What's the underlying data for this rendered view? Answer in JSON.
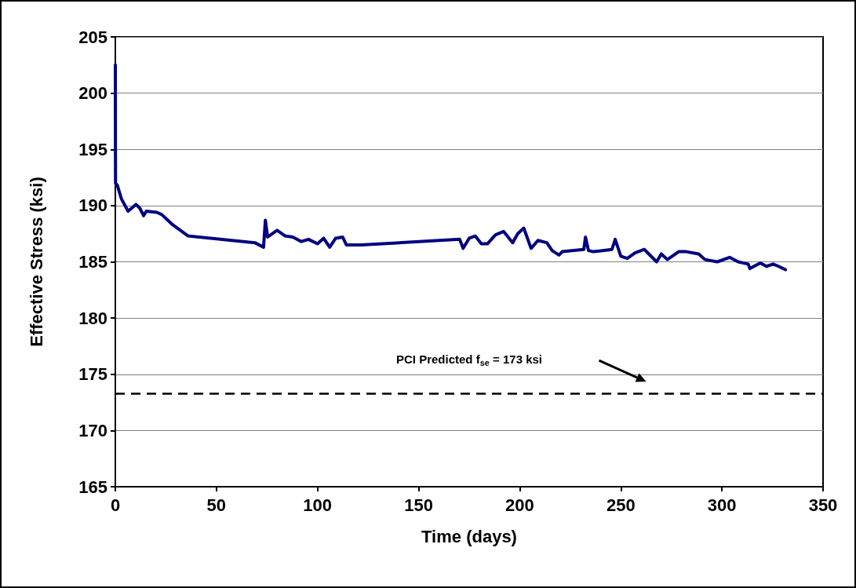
{
  "chart_data": {
    "type": "line",
    "xlabel": "Time (days)",
    "ylabel": "Effective Stress (ksi)",
    "xlim": [
      0,
      350
    ],
    "xticks": [
      0,
      50,
      100,
      150,
      200,
      250,
      300,
      350
    ],
    "ylim": [
      165,
      205
    ],
    "yticks": [
      165,
      170,
      175,
      180,
      185,
      190,
      195,
      200,
      205
    ],
    "grid": "y",
    "marker": "none",
    "line_style": "solid",
    "series": [
      {
        "color": "#000080",
        "x": [
          0,
          0.05,
          0.1,
          1,
          3,
          6.3,
          10.2,
          12,
          14,
          15.3,
          20.5,
          23,
          28.3,
          36,
          69,
          73.3,
          74.2,
          75.3,
          80,
          84,
          87.8,
          92,
          95.5,
          100,
          103,
          106,
          109,
          112.4,
          114.3,
          121.5,
          170.3,
          172,
          175,
          178,
          181,
          184,
          188,
          192,
          196.5,
          199,
          202,
          205.6,
          209,
          213.4,
          216,
          219.4,
          221,
          231.7,
          232.5,
          234,
          236.4,
          245.6,
          247.2,
          250,
          253.2,
          257,
          261.6,
          267.7,
          270,
          273,
          278.6,
          282.4,
          288.5,
          291.6,
          297.7,
          303.8,
          308,
          313,
          313.8,
          319,
          322,
          325.3,
          328,
          331.4
        ],
        "values": [
          202.5,
          195,
          192,
          191.8,
          190.6,
          189.5,
          190.1,
          189.8,
          189.1,
          189.5,
          189.4,
          189.2,
          188.3,
          187.3,
          186.7,
          186.3,
          188.7,
          187.2,
          187.8,
          187.3,
          187.2,
          186.8,
          187.0,
          186.6,
          187.1,
          186.3,
          187.1,
          187.2,
          186.5,
          186.5,
          187.0,
          186.2,
          187.1,
          187.3,
          186.6,
          186.6,
          187.4,
          187.7,
          186.7,
          187.5,
          188.0,
          186.2,
          186.9,
          186.7,
          186.0,
          185.6,
          185.9,
          186.1,
          187.2,
          186.0,
          185.9,
          186.1,
          187.0,
          185.5,
          185.3,
          185.8,
          186.1,
          185.0,
          185.7,
          185.2,
          185.9,
          185.9,
          185.7,
          185.2,
          185.0,
          185.4,
          185.0,
          184.8,
          184.4,
          184.9,
          184.6,
          184.8,
          184.6,
          184.3
        ]
      }
    ],
    "ref_lines": [
      {
        "axis": "y",
        "value": 173.3,
        "label": "PCI Predicted f$_{se}$ = 173 ksi",
        "color": "#000000",
        "line_style": "dashed"
      }
    ]
  }
}
